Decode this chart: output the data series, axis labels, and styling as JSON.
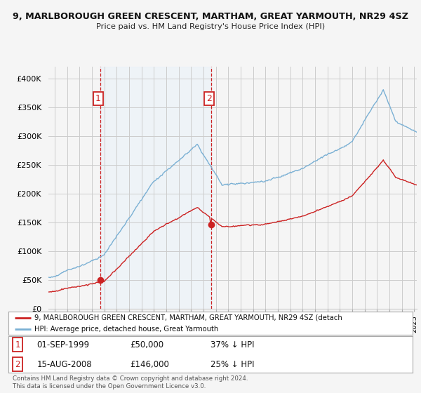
{
  "title": "9, MARLBOROUGH GREEN CRESCENT, MARTHAM, GREAT YARMOUTH, NR29 4SZ",
  "subtitle": "Price paid vs. HM Land Registry's House Price Index (HPI)",
  "ylim": [
    0,
    420000
  ],
  "yticks": [
    0,
    50000,
    100000,
    150000,
    200000,
    250000,
    300000,
    350000,
    400000
  ],
  "ytick_labels": [
    "£0",
    "£50K",
    "£100K",
    "£150K",
    "£200K",
    "£250K",
    "£300K",
    "£350K",
    "£400K"
  ],
  "hpi_color": "#7ab0d4",
  "price_color": "#cc2222",
  "vline_color": "#cc2222",
  "shade_color": "#ddeeff",
  "grid_color": "#cccccc",
  "background_color": "#f5f5f5",
  "plot_bg_color": "#f5f5f5",
  "legend_label_price": "9, MARLBOROUGH GREEN CRESCENT, MARTHAM, GREAT YARMOUTH, NR29 4SZ (detach",
  "legend_label_hpi": "HPI: Average price, detached house, Great Yarmouth",
  "transaction1_label": "1",
  "transaction1_date": "01-SEP-1999",
  "transaction1_price": "£50,000",
  "transaction1_pct": "37% ↓ HPI",
  "transaction1_year": 1999.67,
  "transaction1_value": 50000,
  "transaction2_label": "2",
  "transaction2_date": "15-AUG-2008",
  "transaction2_price": "£146,000",
  "transaction2_pct": "25% ↓ HPI",
  "transaction2_year": 2008.62,
  "transaction2_value": 146000,
  "copyright_text": "Contains HM Land Registry data © Crown copyright and database right 2024.\nThis data is licensed under the Open Government Licence v3.0.",
  "figsize": [
    6.0,
    5.6
  ],
  "dpi": 100,
  "xlim_start": 1995.5,
  "xlim_end": 2025.2
}
